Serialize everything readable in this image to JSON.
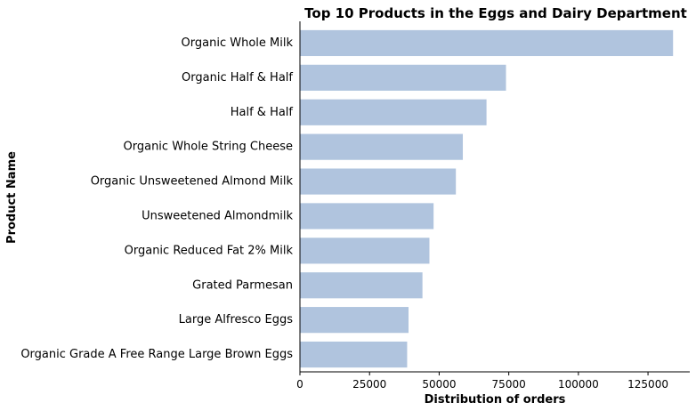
{
  "chart_data": {
    "type": "bar",
    "orientation": "horizontal",
    "title": "Top 10 Products in the Eggs and Dairy Department",
    "xlabel": "Distribution of orders",
    "ylabel": "Product Name",
    "categories": [
      "Organic Whole Milk",
      "Organic Half & Half",
      "Half & Half",
      "Organic Whole String Cheese",
      "Organic Unsweetened Almond Milk",
      "Unsweetened Almondmilk",
      "Organic Reduced Fat 2% Milk",
      "Grated Parmesan",
      "Large Alfresco Eggs",
      "Organic Grade A Free Range Large Brown Eggs"
    ],
    "values": [
      134000,
      74000,
      67000,
      58500,
      56000,
      48000,
      46500,
      44000,
      39000,
      38500
    ],
    "xlim": [
      0,
      140000
    ],
    "xticks": [
      "0",
      "25000",
      "50000",
      "75000",
      "100000",
      "125000"
    ],
    "xtick_values": [
      0,
      25000,
      50000,
      75000,
      100000,
      125000
    ],
    "bar_color": "#b0c4de",
    "grid": false,
    "legend": "none"
  }
}
